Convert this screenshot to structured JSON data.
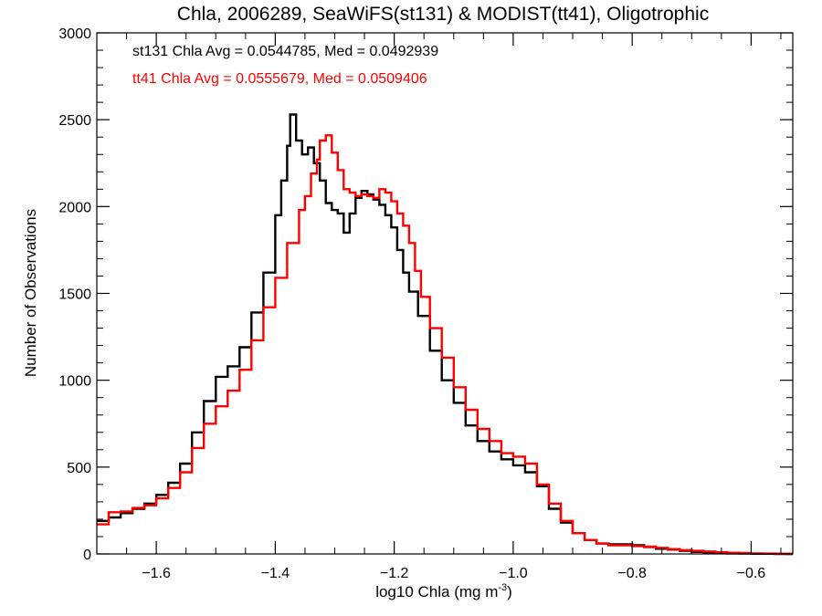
{
  "chart_data": {
    "type": "line",
    "title": "Chla, 2006289, SeaWiFS(st131) & MODIST(tt41), Oligotrophic",
    "xlabel_main": "log10 Chla (mg m",
    "xlabel_sup": "-3",
    "xlabel_close": ")",
    "ylabel": "Number of Observations",
    "xlim": [
      -1.7,
      -0.53
    ],
    "ylim": [
      0,
      3000
    ],
    "grid": false,
    "line_style": "step",
    "xticks": [
      -1.6,
      -1.4,
      -1.2,
      -1.0,
      -0.8,
      -0.6
    ],
    "xtick_labels": [
      "−1.6",
      "−1.4",
      "−1.2",
      "−1.0",
      "−0.8",
      "−0.6"
    ],
    "yticks": [
      0,
      500,
      1000,
      1500,
      2000,
      2500,
      3000
    ],
    "ytick_labels": [
      "0",
      "500",
      "1000",
      "1500",
      "2000",
      "2500",
      "3000"
    ],
    "annotations": [
      {
        "text": "st131 Chla Avg = 0.0544785, Med = 0.0492939",
        "color": "#000000"
      },
      {
        "text": "tt41 Chla Avg = 0.0555679, Med = 0.0509406",
        "color": "#ff0000"
      }
    ],
    "series": [
      {
        "name": "st131",
        "color": "#000000",
        "points": [
          [
            -1.7,
            190
          ],
          [
            -1.68,
            210
          ],
          [
            -1.66,
            235
          ],
          [
            -1.64,
            260
          ],
          [
            -1.62,
            290
          ],
          [
            -1.6,
            340
          ],
          [
            -1.58,
            410
          ],
          [
            -1.56,
            520
          ],
          [
            -1.54,
            700
          ],
          [
            -1.52,
            880
          ],
          [
            -1.5,
            1020
          ],
          [
            -1.48,
            1080
          ],
          [
            -1.46,
            1190
          ],
          [
            -1.44,
            1390
          ],
          [
            -1.42,
            1620
          ],
          [
            -1.4,
            1950
          ],
          [
            -1.39,
            2150
          ],
          [
            -1.38,
            2350
          ],
          [
            -1.375,
            2530
          ],
          [
            -1.365,
            2380
          ],
          [
            -1.355,
            2300
          ],
          [
            -1.345,
            2340
          ],
          [
            -1.335,
            2250
          ],
          [
            -1.325,
            2150
          ],
          [
            -1.315,
            2020
          ],
          [
            -1.305,
            1980
          ],
          [
            -1.295,
            1960
          ],
          [
            -1.285,
            1850
          ],
          [
            -1.275,
            1960
          ],
          [
            -1.265,
            2050
          ],
          [
            -1.255,
            2090
          ],
          [
            -1.245,
            2070
          ],
          [
            -1.235,
            2040
          ],
          [
            -1.225,
            2010
          ],
          [
            -1.215,
            1950
          ],
          [
            -1.205,
            1880
          ],
          [
            -1.195,
            1750
          ],
          [
            -1.185,
            1620
          ],
          [
            -1.175,
            1510
          ],
          [
            -1.16,
            1370
          ],
          [
            -1.14,
            1170
          ],
          [
            -1.12,
            1000
          ],
          [
            -1.1,
            870
          ],
          [
            -1.08,
            740
          ],
          [
            -1.06,
            650
          ],
          [
            -1.04,
            590
          ],
          [
            -1.02,
            545
          ],
          [
            -1.0,
            510
          ],
          [
            -0.98,
            470
          ],
          [
            -0.96,
            390
          ],
          [
            -0.94,
            260
          ],
          [
            -0.92,
            180
          ],
          [
            -0.9,
            120
          ],
          [
            -0.88,
            80
          ],
          [
            -0.86,
            60
          ],
          [
            -0.84,
            55
          ],
          [
            -0.82,
            55
          ],
          [
            -0.8,
            50
          ],
          [
            -0.78,
            40
          ],
          [
            -0.76,
            30
          ],
          [
            -0.74,
            25
          ],
          [
            -0.72,
            18
          ],
          [
            -0.7,
            12
          ],
          [
            -0.68,
            8
          ],
          [
            -0.66,
            5
          ],
          [
            -0.64,
            3
          ],
          [
            -0.62,
            2
          ],
          [
            -0.6,
            1
          ],
          [
            -0.58,
            1
          ],
          [
            -0.56,
            0
          ],
          [
            -0.54,
            0
          ]
        ]
      },
      {
        "name": "tt41",
        "color": "#ff0000",
        "points": [
          [
            -1.7,
            170
          ],
          [
            -1.68,
            240
          ],
          [
            -1.66,
            245
          ],
          [
            -1.64,
            265
          ],
          [
            -1.62,
            280
          ],
          [
            -1.6,
            320
          ],
          [
            -1.58,
            380
          ],
          [
            -1.56,
            470
          ],
          [
            -1.54,
            610
          ],
          [
            -1.52,
            750
          ],
          [
            -1.5,
            850
          ],
          [
            -1.48,
            940
          ],
          [
            -1.46,
            1060
          ],
          [
            -1.44,
            1230
          ],
          [
            -1.42,
            1420
          ],
          [
            -1.4,
            1590
          ],
          [
            -1.38,
            1790
          ],
          [
            -1.36,
            1980
          ],
          [
            -1.35,
            2060
          ],
          [
            -1.34,
            2190
          ],
          [
            -1.33,
            2270
          ],
          [
            -1.325,
            2380
          ],
          [
            -1.315,
            2410
          ],
          [
            -1.305,
            2310
          ],
          [
            -1.295,
            2210
          ],
          [
            -1.285,
            2100
          ],
          [
            -1.275,
            2080
          ],
          [
            -1.265,
            2060
          ],
          [
            -1.255,
            2070
          ],
          [
            -1.245,
            2060
          ],
          [
            -1.235,
            2050
          ],
          [
            -1.225,
            2100
          ],
          [
            -1.215,
            2080
          ],
          [
            -1.205,
            2030
          ],
          [
            -1.195,
            1960
          ],
          [
            -1.185,
            1890
          ],
          [
            -1.175,
            1790
          ],
          [
            -1.165,
            1630
          ],
          [
            -1.155,
            1480
          ],
          [
            -1.14,
            1300
          ],
          [
            -1.12,
            1130
          ],
          [
            -1.1,
            960
          ],
          [
            -1.08,
            830
          ],
          [
            -1.06,
            720
          ],
          [
            -1.04,
            650
          ],
          [
            -1.02,
            580
          ],
          [
            -1.0,
            560
          ],
          [
            -0.98,
            520
          ],
          [
            -0.96,
            400
          ],
          [
            -0.94,
            290
          ],
          [
            -0.92,
            190
          ],
          [
            -0.9,
            120
          ],
          [
            -0.88,
            80
          ],
          [
            -0.86,
            60
          ],
          [
            -0.84,
            50
          ],
          [
            -0.82,
            50
          ],
          [
            -0.8,
            45
          ],
          [
            -0.78,
            42
          ],
          [
            -0.76,
            35
          ],
          [
            -0.74,
            28
          ],
          [
            -0.72,
            22
          ],
          [
            -0.7,
            18
          ],
          [
            -0.68,
            14
          ],
          [
            -0.66,
            10
          ],
          [
            -0.64,
            7
          ],
          [
            -0.62,
            5
          ],
          [
            -0.6,
            3
          ],
          [
            -0.58,
            2
          ],
          [
            -0.56,
            1
          ],
          [
            -0.54,
            0
          ]
        ]
      }
    ]
  }
}
